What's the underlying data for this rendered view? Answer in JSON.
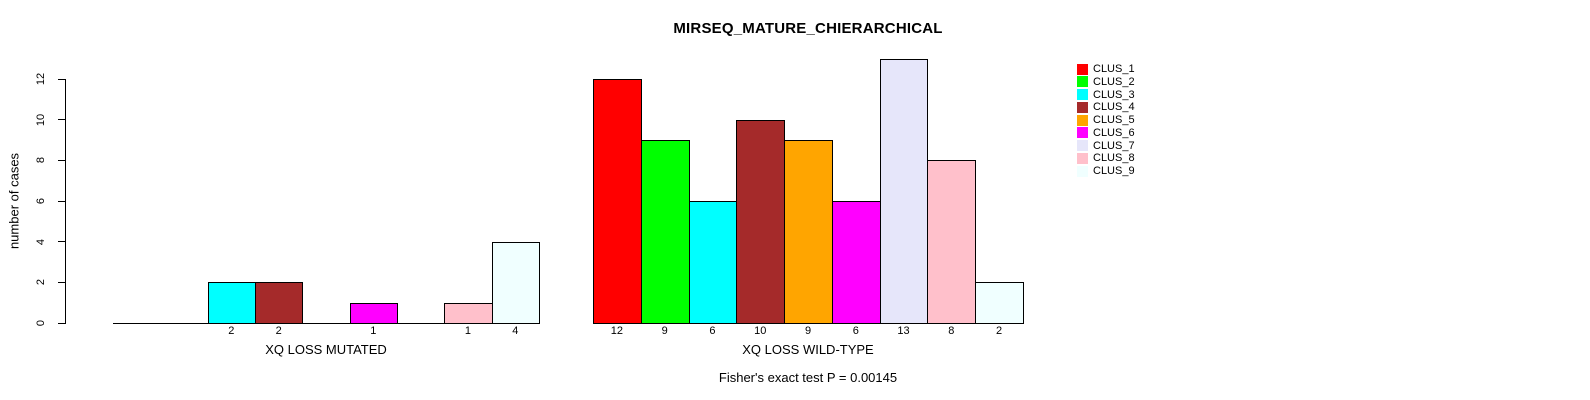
{
  "chart_data": {
    "type": "bar",
    "title": "MIRSEQ_MATURE_CHIERARCHICAL",
    "ylabel": "number of cases",
    "footer": "Fisher's exact test P = 0.00145",
    "ylim": [
      0,
      13
    ],
    "yticks": [
      0,
      2,
      4,
      6,
      8,
      10,
      12
    ],
    "grid": false,
    "legend_position": "top-right",
    "clusters": [
      {
        "name": "CLUS_1",
        "color": "#FF0000"
      },
      {
        "name": "CLUS_2",
        "color": "#00FF00"
      },
      {
        "name": "CLUS_3",
        "color": "#00FFFF"
      },
      {
        "name": "CLUS_4",
        "color": "#A52A2A"
      },
      {
        "name": "CLUS_5",
        "color": "#FFA500"
      },
      {
        "name": "CLUS_6",
        "color": "#FF00FF"
      },
      {
        "name": "CLUS_7",
        "color": "#E6E6FA"
      },
      {
        "name": "CLUS_8",
        "color": "#FFC0CB"
      },
      {
        "name": "CLUS_9",
        "color": "#F0FFFF"
      }
    ],
    "groups": [
      {
        "label": "XQ LOSS MUTATED",
        "values": [
          0,
          0,
          2,
          2,
          0,
          1,
          0,
          1,
          4
        ],
        "bar_labels": [
          "",
          "",
          "2",
          "2",
          "",
          "1",
          "",
          "1",
          "4"
        ]
      },
      {
        "label": "XQ LOSS WILD-TYPE",
        "values": [
          12,
          9,
          6,
          10,
          9,
          6,
          13,
          8,
          2
        ],
        "bar_labels": [
          "12",
          "9",
          "6",
          "10",
          "9",
          "6",
          "13",
          "8",
          "2"
        ]
      }
    ]
  }
}
